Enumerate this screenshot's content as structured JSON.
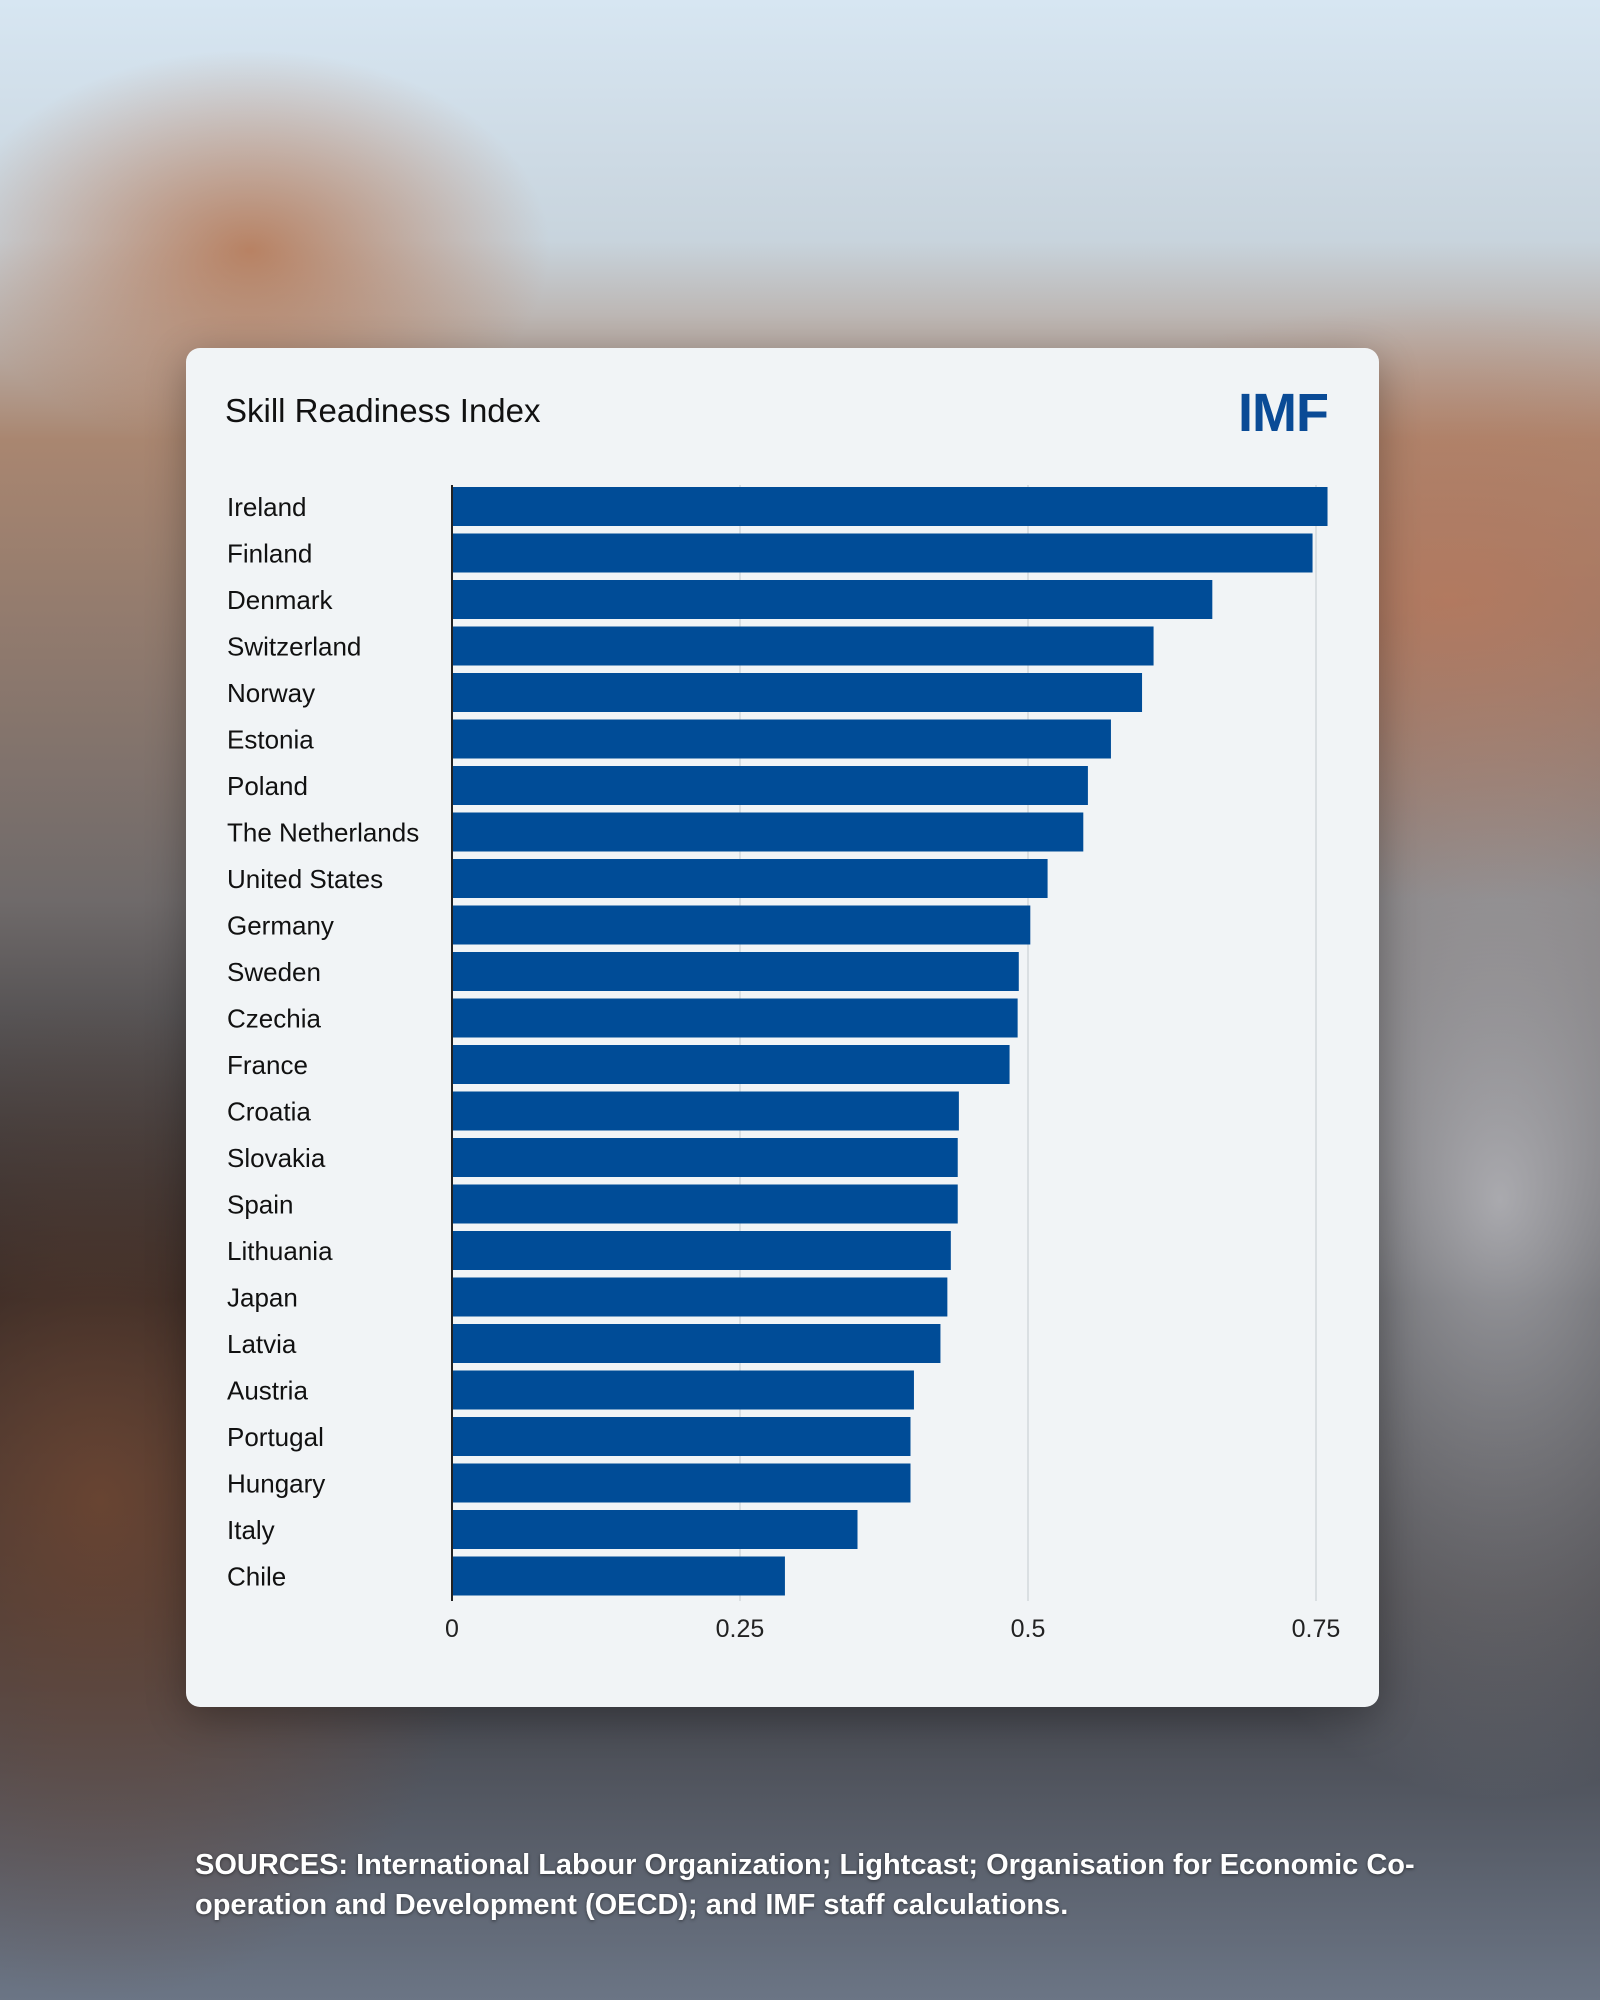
{
  "chart_data": {
    "type": "bar",
    "orientation": "horizontal",
    "title": "Skill Readiness Index",
    "categories": [
      "Ireland",
      "Finland",
      "Denmark",
      "Switzerland",
      "Norway",
      "Estonia",
      "Poland",
      "The Netherlands",
      "United States",
      "Germany",
      "Sweden",
      "Czechia",
      "France",
      "Croatia",
      "Slovakia",
      "Spain",
      "Lithuania",
      "Japan",
      "Latvia",
      "Austria",
      "Portugal",
      "Hungary",
      "Italy",
      "Chile"
    ],
    "values": [
      0.76,
      0.747,
      0.66,
      0.609,
      0.599,
      0.572,
      0.552,
      0.548,
      0.517,
      0.502,
      0.492,
      0.491,
      0.484,
      0.44,
      0.439,
      0.439,
      0.433,
      0.43,
      0.424,
      0.401,
      0.398,
      0.398,
      0.352,
      0.289
    ],
    "xlim": [
      0,
      0.75
    ],
    "xticks": [
      0,
      0.25,
      0.5,
      0.75
    ],
    "xtick_labels": [
      "0",
      "0.25",
      "0.5",
      "0.75"
    ],
    "xlabel": "",
    "ylabel": "",
    "grid": true,
    "bar_color": "#004c97"
  },
  "logo": "IMF",
  "sources": "SOURCES: International Labour Organization; Lightcast; Organisation for Economic Co-operation and Development (OECD); and IMF staff calculations."
}
